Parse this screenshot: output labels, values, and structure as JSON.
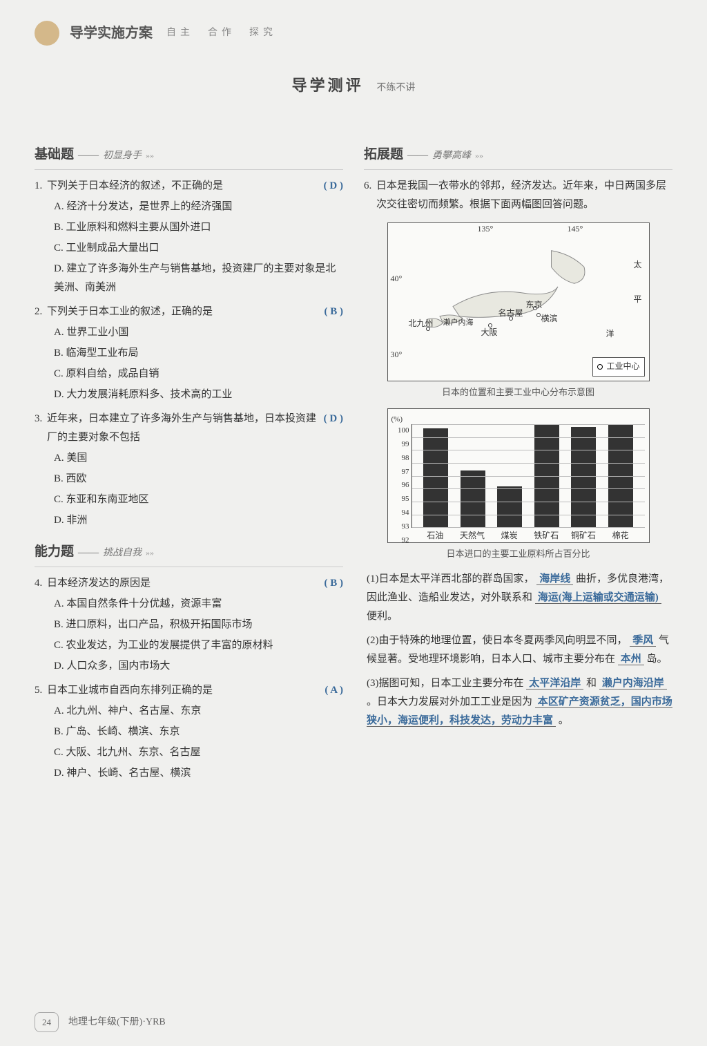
{
  "header": {
    "title": "导学实施方案",
    "subtitle": "自主　合作　探究"
  },
  "banner": {
    "title": "导学测评",
    "subtitle": "不练不讲"
  },
  "sections": {
    "basic": {
      "title": "基础题",
      "sub": "初显身手"
    },
    "ability": {
      "title": "能力题",
      "sub": "挑战自我"
    },
    "extend": {
      "title": "拓展题",
      "sub": "勇攀高峰"
    }
  },
  "questions": [
    {
      "num": "1.",
      "stem": "下列关于日本经济的叙述，不正确的是",
      "answer": "( D )",
      "options": [
        "A. 经济十分发达，是世界上的经济强国",
        "B. 工业原料和燃料主要从国外进口",
        "C. 工业制成品大量出口",
        "D. 建立了许多海外生产与销售基地，投资建厂的主要对象是北美洲、南美洲"
      ]
    },
    {
      "num": "2.",
      "stem": "下列关于日本工业的叙述，正确的是",
      "answer": "( B )",
      "options": [
        "A. 世界工业小国",
        "B. 临海型工业布局",
        "C. 原料自给，成品自销",
        "D. 大力发展消耗原料多、技术高的工业"
      ]
    },
    {
      "num": "3.",
      "stem": "近年来，日本建立了许多海外生产与销售基地，日本投资建厂的主要对象不包括",
      "answer": "( D )",
      "options": [
        "A. 美国",
        "B. 西欧",
        "C. 东亚和东南亚地区",
        "D. 非洲"
      ]
    },
    {
      "num": "4.",
      "stem": "日本经济发达的原因是",
      "answer": "( B )",
      "options": [
        "A. 本国自然条件十分优越，资源丰富",
        "B. 进口原料，出口产品，积极开拓国际市场",
        "C. 农业发达，为工业的发展提供了丰富的原材料",
        "D. 人口众多，国内市场大"
      ]
    },
    {
      "num": "5.",
      "stem": "日本工业城市自西向东排列正确的是",
      "answer": "( A )",
      "options": [
        "A. 北九州、神户、名古屋、东京",
        "B. 广岛、长崎、横滨、东京",
        "C. 大阪、北九州、东京、名古屋",
        "D. 神户、长崎、名古屋、横滨"
      ]
    }
  ],
  "q6": {
    "num": "6.",
    "stem": "日本是我国一衣带水的邻邦，经济发达。近年来，中日两国多层次交往密切而频繁。根据下面两幅图回答问题。",
    "map": {
      "lon135": "135°",
      "lon145": "145°",
      "lat40": "40°",
      "lat30": "30°",
      "pacific": "太",
      "pacific2": "平",
      "pacific3": "洋",
      "cities": {
        "tokyo": "东京",
        "yokohama": "横滨",
        "nagoya": "名古屋",
        "osaka": "大阪",
        "seto": "濑户内海",
        "kitakyushu": "北九州"
      },
      "legend": "工业中心",
      "caption": "日本的位置和主要工业中心分布示意图"
    },
    "chart": {
      "y_unit": "(%)",
      "y_ticks": [
        "100",
        "99",
        "98",
        "97",
        "96",
        "95",
        "94",
        "93",
        "92"
      ],
      "categories": [
        "石油",
        "天然气",
        "煤炭",
        "铁矿石",
        "铜矿石",
        "棉花"
      ],
      "values": [
        99.7,
        96.4,
        95.2,
        100,
        99.8,
        100
      ],
      "caption": "日本进口的主要工业原料所占百分比",
      "bar_color": "#333333",
      "ylim": [
        92,
        100
      ]
    },
    "subq1": {
      "prefix": "(1)日本是太平洋西北部的群岛国家，",
      "blank1": "海岸线",
      "mid1": "曲折，多优良港湾，因此渔业、造船业发达，对外联系和",
      "blank2": "海运(海上运输或交通运输)",
      "suffix": "便利。"
    },
    "subq2": {
      "prefix": "(2)由于特殊的地理位置，使日本冬夏两季风向明显不同，",
      "blank1": "季风",
      "mid1": "气候显著。受地理环境影响，日本人口、城市主要分布在",
      "blank2": "本州",
      "suffix": "岛。"
    },
    "subq3": {
      "prefix": "(3)据图可知，日本工业主要分布在",
      "blank1": "太平洋沿岸",
      "mid1": "和",
      "blank2": "濑户内海沿岸",
      "mid2": "。日本大力发展对外加工工业是因为",
      "blank3": "本区矿产资源贫乏，国内市场狭小，海运便利，科技发达，劳动力丰富",
      "suffix": "。"
    }
  },
  "footer": {
    "page": "24",
    "text": "地理七年级(下册)·YRB"
  }
}
